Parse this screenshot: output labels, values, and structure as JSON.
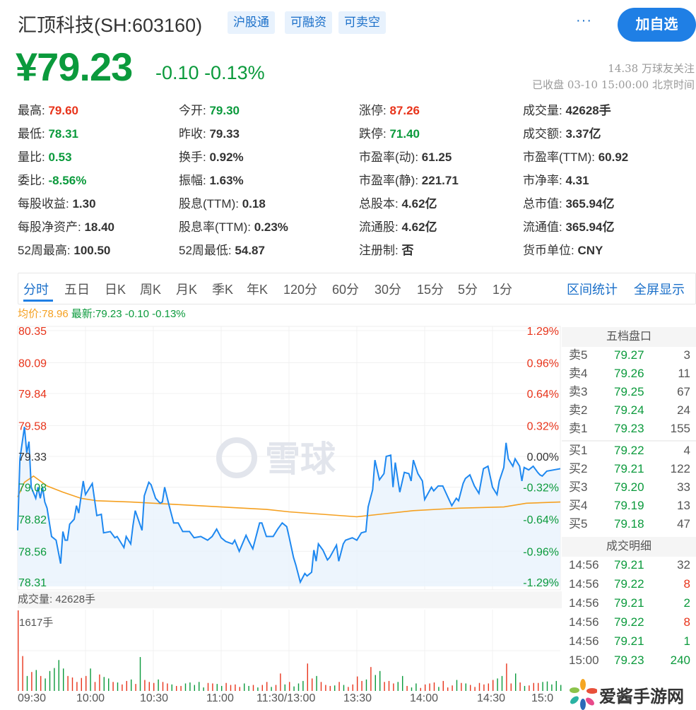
{
  "header": {
    "title": "汇顶科技(SH:603160)",
    "tags": [
      "沪股通",
      "可融资",
      "可卖空"
    ],
    "more": "···",
    "follow_button": "加自选"
  },
  "quote": {
    "price": "¥79.23",
    "change": "-0.10",
    "change_pct": "-0.13%",
    "followers": "14.38 万球友关注",
    "status": "已收盘 03-10 15:00:00 北京时间"
  },
  "stats": [
    [
      {
        "k": "最高:",
        "v": "79.60",
        "c": "red"
      },
      {
        "k": "今开:",
        "v": "79.30",
        "c": "green"
      },
      {
        "k": "涨停:",
        "v": "87.26",
        "c": "red"
      },
      {
        "k": "成交量:",
        "v": "42628手",
        "c": ""
      }
    ],
    [
      {
        "k": "最低:",
        "v": "78.31",
        "c": "green"
      },
      {
        "k": "昨收:",
        "v": "79.33",
        "c": ""
      },
      {
        "k": "跌停:",
        "v": "71.40",
        "c": "green"
      },
      {
        "k": "成交额:",
        "v": "3.37亿",
        "c": ""
      }
    ],
    [
      {
        "k": "量比:",
        "v": "0.53",
        "c": "green"
      },
      {
        "k": "换手:",
        "v": "0.92%",
        "c": ""
      },
      {
        "k": "市盈率(动):",
        "v": "61.25",
        "c": ""
      },
      {
        "k": "市盈率(TTM):",
        "v": "60.92",
        "c": ""
      }
    ],
    [
      {
        "k": "委比:",
        "v": "-8.56%",
        "c": "green"
      },
      {
        "k": "振幅:",
        "v": "1.63%",
        "c": ""
      },
      {
        "k": "市盈率(静):",
        "v": "221.71",
        "c": ""
      },
      {
        "k": "市净率:",
        "v": "4.31",
        "c": ""
      }
    ],
    [
      {
        "k": "每股收益:",
        "v": "1.30",
        "c": ""
      },
      {
        "k": "股息(TTM):",
        "v": "0.18",
        "c": ""
      },
      {
        "k": "总股本:",
        "v": "4.62亿",
        "c": ""
      },
      {
        "k": "总市值:",
        "v": "365.94亿",
        "c": ""
      }
    ],
    [
      {
        "k": "每股净资产:",
        "v": "18.40",
        "c": ""
      },
      {
        "k": "股息率(TTM):",
        "v": "0.23%",
        "c": ""
      },
      {
        "k": "流通股:",
        "v": "4.62亿",
        "c": ""
      },
      {
        "k": "流通值:",
        "v": "365.94亿",
        "c": ""
      }
    ],
    [
      {
        "k": "52周最高:",
        "v": "100.50",
        "c": ""
      },
      {
        "k": "52周最低:",
        "v": "54.87",
        "c": ""
      },
      {
        "k": "注册制:",
        "v": "否",
        "c": ""
      },
      {
        "k": "货币单位:",
        "v": "CNY",
        "c": ""
      }
    ]
  ],
  "tabs": [
    "分时",
    "五日",
    "日K",
    "周K",
    "月K",
    "季K",
    "年K",
    "120分",
    "60分",
    "30分",
    "15分",
    "5分",
    "1分"
  ],
  "active_tab": "分时",
  "tab_links": [
    "区间统计",
    "全屏显示"
  ],
  "legend": {
    "avg": "均价:78.96",
    "latest": "最新:79.23 -0.10 -0.13%"
  },
  "watermark": "雪球",
  "order_book": {
    "title": "五档盘口",
    "asks": [
      [
        "卖5",
        "79.27",
        "3"
      ],
      [
        "卖4",
        "79.26",
        "11"
      ],
      [
        "卖3",
        "79.25",
        "67"
      ],
      [
        "卖2",
        "79.24",
        "24"
      ],
      [
        "卖1",
        "79.23",
        "155"
      ]
    ],
    "bids": [
      [
        "买1",
        "79.22",
        "4"
      ],
      [
        "买2",
        "79.21",
        "122"
      ],
      [
        "买3",
        "79.20",
        "33"
      ],
      [
        "买4",
        "79.19",
        "13"
      ],
      [
        "买5",
        "79.18",
        "47"
      ]
    ]
  },
  "trades": {
    "title": "成交明细",
    "rows": [
      [
        "14:56",
        "79.21",
        "32",
        ""
      ],
      [
        "14:56",
        "79.22",
        "8",
        "red"
      ],
      [
        "14:56",
        "79.21",
        "2",
        "green"
      ],
      [
        "14:56",
        "79.22",
        "8",
        "red"
      ],
      [
        "14:56",
        "79.21",
        "1",
        "green"
      ],
      [
        "15:00",
        "79.23",
        "240",
        "green"
      ]
    ]
  },
  "site_watermark": "爱酱手游网",
  "colors": {
    "up": "#e8341b",
    "down": "#0b9a3c",
    "price_line": "#1e88f0",
    "avg_line": "#f5a020",
    "accent": "#1f7fe5"
  },
  "chart_data": {
    "type": "line",
    "y_ticks_left": [
      "80.35",
      "80.09",
      "79.84",
      "79.58",
      "79.33",
      "79.08",
      "78.82",
      "78.56",
      "78.31"
    ],
    "y_ticks_right": [
      "1.29%",
      "0.96%",
      "0.64%",
      "0.32%",
      "0.00%",
      "-0.32%",
      "-0.64%",
      "-0.96%",
      "-1.29%"
    ],
    "ylim": [
      78.31,
      80.35
    ],
    "prev_close": 79.33,
    "x_ticks": [
      "09:30",
      "10:00",
      "10:30",
      "11:00",
      "11:30/13:00",
      "13:30",
      "14:00",
      "14:30",
      "15:0"
    ],
    "price": [
      [
        "09:30",
        78.73
      ],
      [
        "09:31",
        79.31
      ],
      [
        "09:33",
        79.57
      ],
      [
        "09:34",
        79.36
      ],
      [
        "09:35",
        79.45
      ],
      [
        "09:36",
        79.08
      ],
      [
        "09:38",
        78.99
      ],
      [
        "09:39",
        79.08
      ],
      [
        "09:40",
        78.99
      ],
      [
        "09:41",
        79.08
      ],
      [
        "09:42",
        78.96
      ],
      [
        "09:43",
        78.91
      ],
      [
        "09:45",
        78.68
      ],
      [
        "09:47",
        78.65
      ],
      [
        "09:49",
        78.46
      ],
      [
        "09:50",
        78.72
      ],
      [
        "09:51",
        78.65
      ],
      [
        "09:52",
        78.65
      ],
      [
        "09:53",
        78.78
      ],
      [
        "09:55",
        78.82
      ],
      [
        "09:56",
        78.93
      ],
      [
        "09:57",
        78.87
      ],
      [
        "09:59",
        79.13
      ],
      [
        "10:00",
        79.02
      ],
      [
        "10:03",
        79.11
      ],
      [
        "10:05",
        78.85
      ],
      [
        "10:07",
        78.86
      ],
      [
        "10:08",
        78.71
      ],
      [
        "10:11",
        78.72
      ],
      [
        "10:13",
        78.67
      ],
      [
        "10:14",
        78.68
      ],
      [
        "10:17",
        78.59
      ],
      [
        "10:18",
        78.68
      ],
      [
        "10:20",
        78.62
      ],
      [
        "10:21",
        78.77
      ],
      [
        "10:22",
        78.89
      ],
      [
        "10:25",
        78.73
      ],
      [
        "10:26",
        79.01
      ],
      [
        "10:28",
        79.12
      ],
      [
        "10:29",
        79.1
      ],
      [
        "10:31",
        78.99
      ],
      [
        "10:33",
        78.95
      ],
      [
        "10:34",
        78.96
      ],
      [
        "10:35",
        79.08
      ],
      [
        "10:37",
        78.93
      ],
      [
        "10:39",
        78.79
      ],
      [
        "10:41",
        78.79
      ],
      [
        "10:43",
        78.72
      ],
      [
        "10:46",
        78.72
      ],
      [
        "10:48",
        78.67
      ],
      [
        "10:51",
        78.68
      ],
      [
        "10:54",
        78.65
      ],
      [
        "10:56",
        78.68
      ],
      [
        "10:58",
        78.74
      ],
      [
        "11:00",
        78.67
      ],
      [
        "11:02",
        78.64
      ],
      [
        "11:05",
        78.62
      ],
      [
        "11:06",
        78.65
      ],
      [
        "11:08",
        78.56
      ],
      [
        "11:11",
        78.69
      ],
      [
        "11:12",
        78.65
      ],
      [
        "11:14",
        78.58
      ],
      [
        "11:16",
        78.72
      ],
      [
        "11:17",
        78.79
      ],
      [
        "11:18",
        78.79
      ],
      [
        "11:20",
        78.68
      ],
      [
        "11:23",
        78.68
      ],
      [
        "11:25",
        78.74
      ],
      [
        "11:27",
        78.79
      ],
      [
        "11:29",
        78.76
      ],
      [
        "11:30",
        78.68
      ],
      [
        "13:02",
        78.51
      ],
      [
        "13:03",
        78.45
      ],
      [
        "13:05",
        78.31
      ],
      [
        "13:07",
        78.38
      ],
      [
        "13:08",
        78.36
      ],
      [
        "13:10",
        78.39
      ],
      [
        "13:11",
        78.57
      ],
      [
        "13:12",
        78.48
      ],
      [
        "13:13",
        78.62
      ],
      [
        "13:15",
        78.57
      ],
      [
        "13:17",
        78.49
      ],
      [
        "13:18",
        78.51
      ],
      [
        "13:21",
        78.61
      ],
      [
        "13:22",
        78.48
      ],
      [
        "13:24",
        78.62
      ],
      [
        "13:25",
        78.65
      ],
      [
        "13:28",
        78.67
      ],
      [
        "13:30",
        78.65
      ],
      [
        "13:32",
        78.71
      ],
      [
        "13:34",
        78.72
      ],
      [
        "13:35",
        78.92
      ],
      [
        "13:37",
        79.06
      ],
      [
        "13:38",
        79.3
      ],
      [
        "13:40",
        79.14
      ],
      [
        "13:42",
        79.19
      ],
      [
        "13:43",
        79.33
      ],
      [
        "13:45",
        79.34
      ],
      [
        "13:46",
        79.08
      ],
      [
        "13:47",
        79.28
      ],
      [
        "13:49",
        79.04
      ],
      [
        "13:51",
        79.2
      ],
      [
        "13:53",
        79.19
      ],
      [
        "13:54",
        79.13
      ],
      [
        "13:55",
        79.3
      ],
      [
        "13:57",
        79.19
      ],
      [
        "13:59",
        79.13
      ],
      [
        "14:00",
        78.98
      ],
      [
        "14:03",
        79.08
      ],
      [
        "14:04",
        79.05
      ],
      [
        "14:06",
        79.09
      ],
      [
        "14:08",
        79.09
      ],
      [
        "14:11",
        78.97
      ],
      [
        "14:12",
        78.93
      ],
      [
        "14:14",
        78.99
      ],
      [
        "14:15",
        78.97
      ],
      [
        "14:17",
        79.11
      ],
      [
        "14:18",
        79.15
      ],
      [
        "14:20",
        79.18
      ],
      [
        "14:22",
        79.09
      ],
      [
        "14:24",
        79.03
      ],
      [
        "14:26",
        79.23
      ],
      [
        "14:28",
        79.25
      ],
      [
        "14:30",
        79.08
      ],
      [
        "14:32",
        79.02
      ],
      [
        "14:33",
        79.13
      ],
      [
        "14:35",
        79.24
      ],
      [
        "14:36",
        79.44
      ],
      [
        "14:37",
        79.31
      ],
      [
        "14:39",
        79.25
      ],
      [
        "14:40",
        79.31
      ],
      [
        "14:42",
        79.25
      ],
      [
        "14:43",
        79.13
      ],
      [
        "14:44",
        79.24
      ],
      [
        "14:46",
        79.22
      ],
      [
        "14:48",
        79.25
      ],
      [
        "14:50",
        79.2
      ],
      [
        "14:51",
        79.18
      ],
      [
        "14:52",
        79.17
      ],
      [
        "14:54",
        79.21
      ],
      [
        "15:00",
        79.23
      ]
    ],
    "avg": [
      [
        "09:30",
        79.0
      ],
      [
        "09:33",
        79.12
      ],
      [
        "09:37",
        79.17
      ],
      [
        "09:43",
        79.09
      ],
      [
        "09:50",
        79.04
      ],
      [
        "09:58",
        78.99
      ],
      [
        "10:05",
        78.97
      ],
      [
        "10:20",
        78.96
      ],
      [
        "10:40",
        78.94
      ],
      [
        "11:00",
        78.92
      ],
      [
        "11:20",
        78.9
      ],
      [
        "13:00",
        78.88
      ],
      [
        "13:15",
        78.86
      ],
      [
        "13:30",
        78.84
      ],
      [
        "13:40",
        78.86
      ],
      [
        "13:55",
        78.89
      ],
      [
        "14:15",
        78.91
      ],
      [
        "14:35",
        78.92
      ],
      [
        "14:45",
        78.95
      ],
      [
        "15:00",
        78.96
      ]
    ],
    "volume_label": "成交量: 42628手",
    "volume_max_label": "1617手",
    "volume_max": 1617,
    "volume_interval_min": 2,
    "volume": [
      1617,
      700,
      300,
      380,
      420,
      300,
      250,
      400,
      460,
      620,
      450,
      300,
      270,
      180,
      260,
      300,
      450,
      180,
      330,
      280,
      250,
      180,
      170,
      130,
      200,
      230,
      140,
      680,
      220,
      180,
      160,
      230,
      180,
      150,
      130,
      100,
      100,
      150,
      170,
      120,
      180,
      70,
      160,
      150,
      140,
      100,
      160,
      120,
      130,
      80,
      150,
      100,
      120,
      70,
      120,
      180,
      80,
      120,
      350,
      130,
      180,
      90,
      150,
      200,
      550,
      250,
      300,
      180,
      120,
      100,
      110,
      180,
      120,
      80,
      130,
      290,
      200,
      230,
      480,
      320,
      400,
      180,
      200,
      150,
      180,
      300,
      100,
      70,
      150,
      60,
      130,
      150,
      170,
      80,
      200,
      70,
      110,
      220,
      160,
      150,
      120,
      80,
      160,
      130,
      150,
      220,
      250,
      300,
      550,
      150,
      350,
      170,
      100,
      110,
      160,
      160,
      180,
      190,
      130,
      200,
      120
    ],
    "volume_dir": "rrgrgrgggggrrrrrgrrggrgrrgrgrrrgrrgrrgggggrrggrrrrggrgrrgrrgrgggrrgrrrgrgrrrrgrggrrrggrggrrrrgrrrgrgrrrrrrggrrgrgrrr"
  }
}
